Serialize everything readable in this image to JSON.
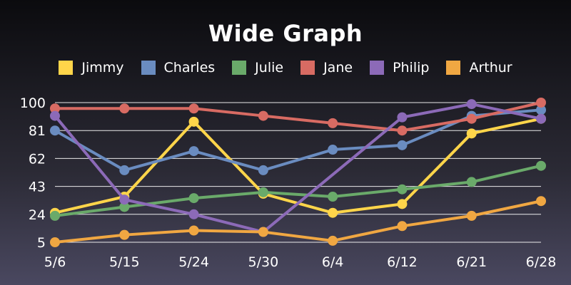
{
  "chart_data": {
    "type": "line",
    "title": "Wide Graph",
    "xlabel": "",
    "ylabel": "",
    "categories": [
      "5/6",
      "5/15",
      "5/24",
      "5/30",
      "6/4",
      "6/12",
      "6/21",
      "6/28"
    ],
    "yticks": [
      5,
      24,
      43,
      62,
      81,
      100
    ],
    "ylim": [
      5,
      100
    ],
    "grid": "horizontal",
    "legend_position": "top",
    "series": [
      {
        "name": "Jimmy",
        "color": "#ffd54a",
        "values": [
          25,
          36,
          87,
          38,
          25,
          31,
          79,
          89
        ]
      },
      {
        "name": "Charles",
        "color": "#6a8cc0",
        "values": [
          81,
          54,
          67,
          54,
          68,
          71,
          91,
          95
        ]
      },
      {
        "name": "Julie",
        "color": "#6aaa6a",
        "values": [
          23,
          29,
          35,
          39,
          36,
          41,
          46,
          57
        ]
      },
      {
        "name": "Jane",
        "color": "#d86b63",
        "values": [
          96,
          96,
          96,
          91,
          86,
          81,
          89,
          100
        ]
      },
      {
        "name": "Philip",
        "color": "#8c6ab8",
        "values": [
          91,
          34,
          24,
          12,
          null,
          90,
          99,
          89
        ]
      },
      {
        "name": "Arthur",
        "color": "#f0a742",
        "values": [
          5,
          10,
          13,
          12,
          6,
          16,
          23,
          33
        ]
      }
    ]
  }
}
